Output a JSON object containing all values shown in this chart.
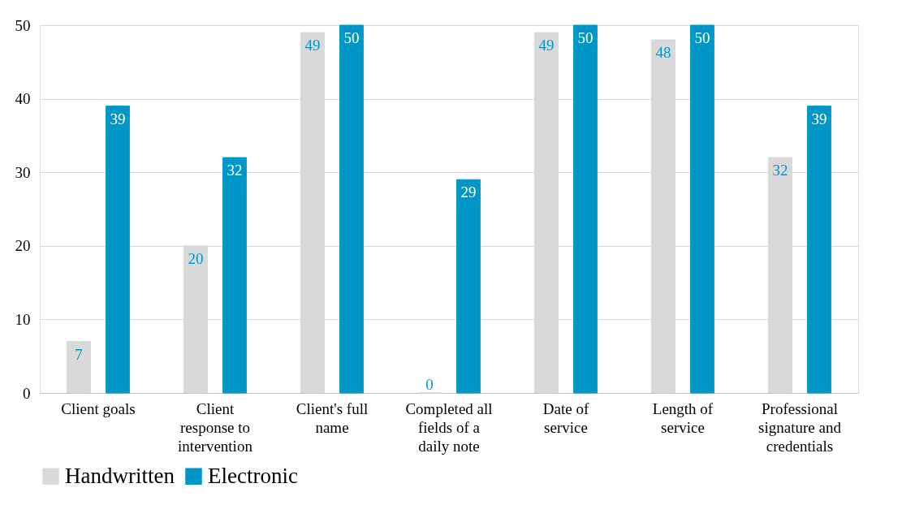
{
  "chart_data": {
    "type": "bar",
    "categories": [
      "Client goals",
      "Client response to intervention",
      "Client's full name",
      "Completed all fields of a daily note",
      "Date of service",
      "Length of service",
      "Professional signature and credentials"
    ],
    "series": [
      {
        "name": "Handwritten",
        "color": "#d9d9d9",
        "values": [
          7,
          20,
          49,
          0,
          49,
          48,
          32
        ]
      },
      {
        "name": "Electronic",
        "color": "#0096c8",
        "values": [
          39,
          32,
          50,
          29,
          50,
          50,
          39
        ]
      }
    ],
    "ylim": [
      0,
      50
    ],
    "yticks": [
      0,
      10,
      20,
      30,
      40,
      50
    ],
    "grid": "y",
    "legend": "bottom",
    "data_labels": true
  }
}
